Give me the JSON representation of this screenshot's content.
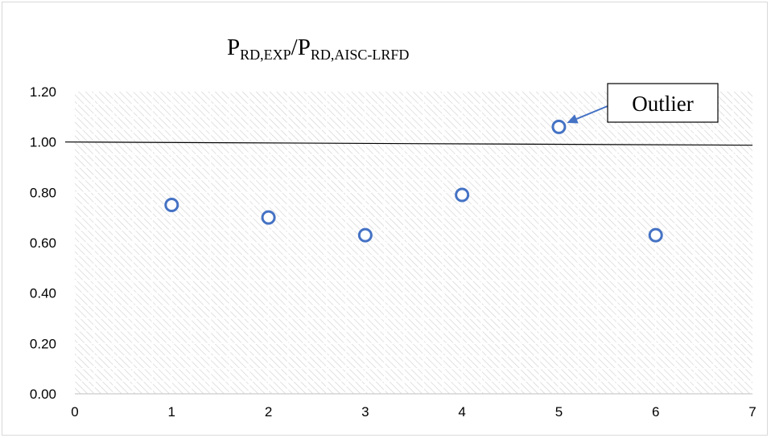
{
  "chart_data": {
    "type": "scatter",
    "title": {
      "parts": [
        {
          "text": "P",
          "sub": "RD,EXP"
        },
        {
          "text": "/P",
          "sub": "RD,AISC-LRFD"
        }
      ]
    },
    "xlabel": "",
    "ylabel": "",
    "xlim": [
      0,
      7
    ],
    "ylim": [
      0,
      1.2
    ],
    "x_ticks": [
      "0",
      "1",
      "2",
      "3",
      "4",
      "5",
      "6",
      "7"
    ],
    "y_ticks": [
      "0.00",
      "0.20",
      "0.40",
      "0.60",
      "0.80",
      "1.00",
      "1.20"
    ],
    "grid": true,
    "legend": "none",
    "series": [
      {
        "x": [
          1,
          2,
          3,
          4,
          5,
          6
        ],
        "y": [
          0.75,
          0.7,
          0.63,
          0.79,
          1.06,
          0.63
        ],
        "marker": "open-circle",
        "color": "#4472c4"
      }
    ],
    "reference_line": {
      "y": 1.0,
      "color": "#000000"
    },
    "annotation": {
      "text": "Outlier",
      "target_x": 5,
      "target_y": 1.06,
      "arrow_color": "#4472c4"
    }
  }
}
